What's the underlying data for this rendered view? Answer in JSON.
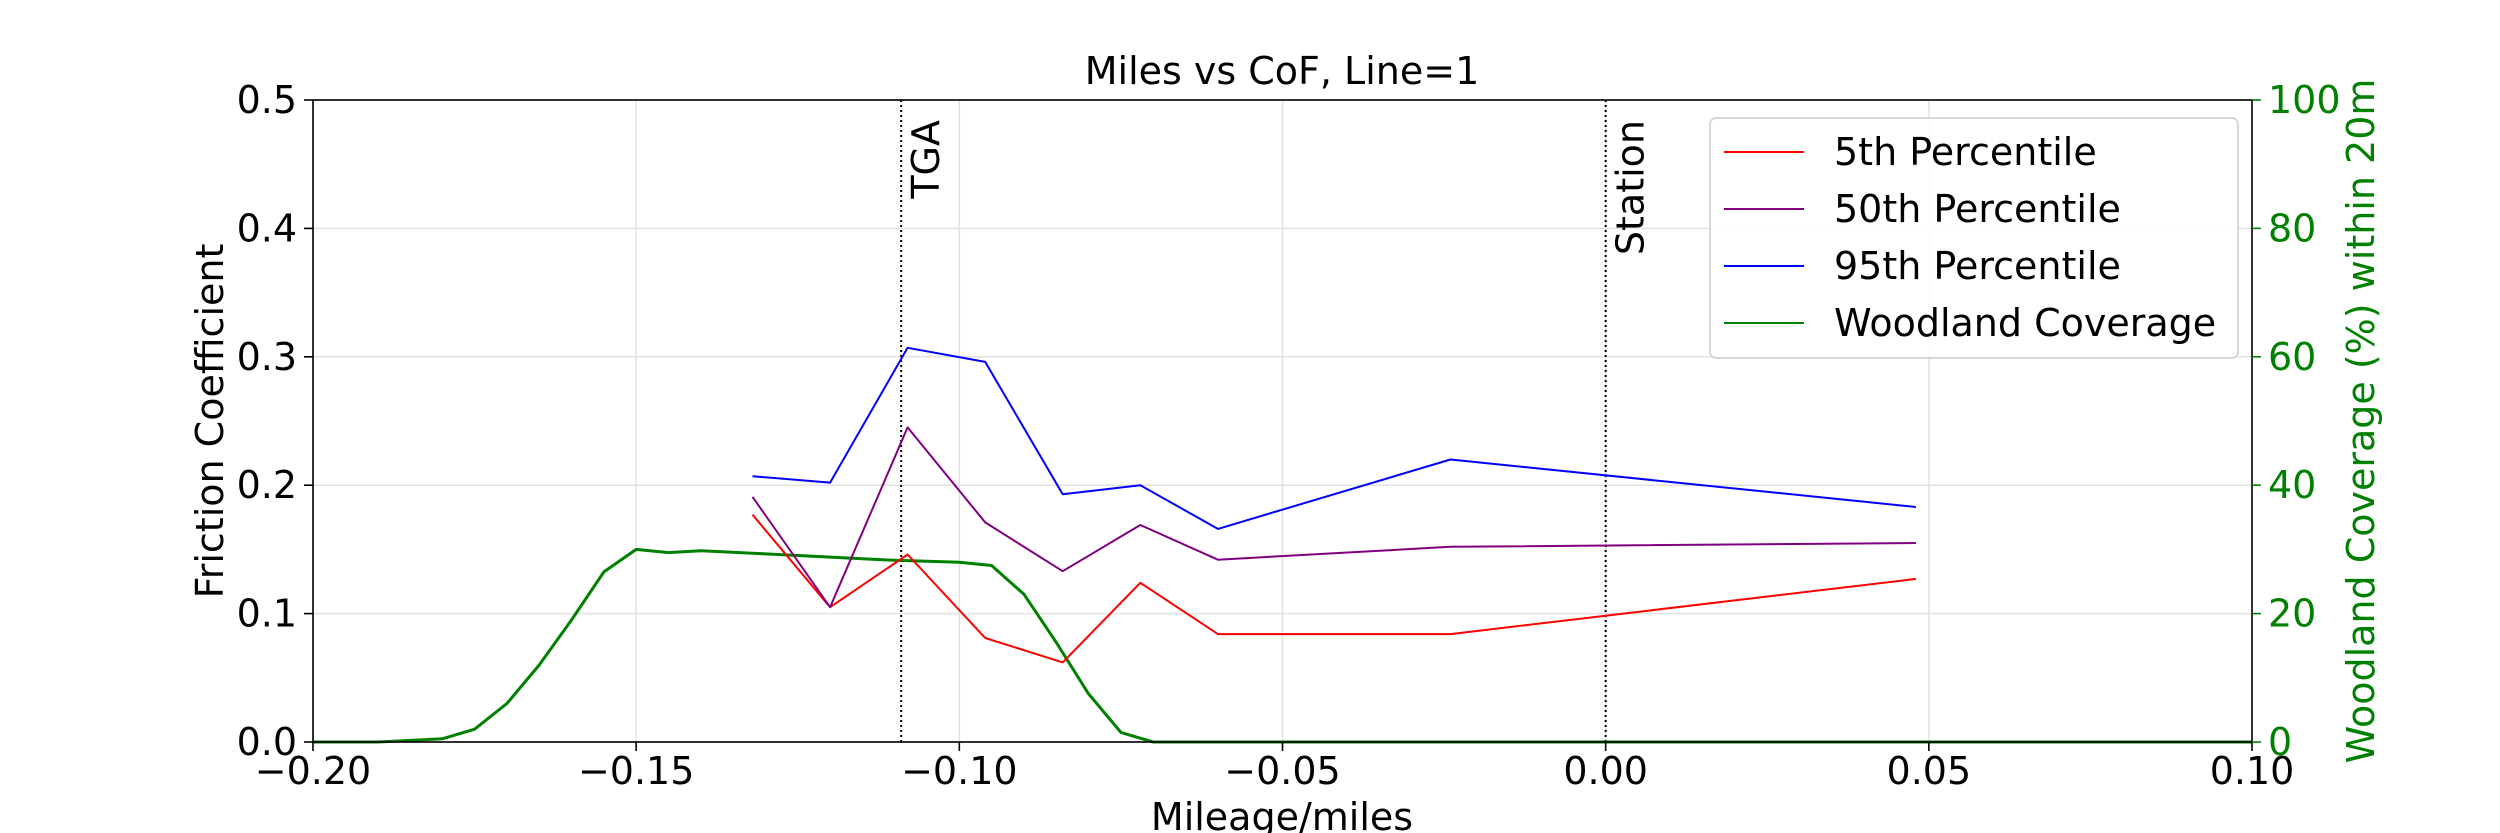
{
  "chart_data": {
    "type": "line",
    "title": "Miles vs CoF, Line=1",
    "xlabel": "Mileage/miles",
    "ylabel": "Friction Coefficient",
    "y2label": "Woodland Coverage (%) within 20m",
    "xlim": [
      -0.2,
      0.1
    ],
    "ylim": [
      0,
      0.5
    ],
    "y2lim": [
      0,
      100
    ],
    "xticks": [
      -0.2,
      -0.15,
      -0.1,
      -0.05,
      0.0,
      0.05,
      0.1
    ],
    "xtick_labels": [
      "−0.20",
      "−0.15",
      "−0.10",
      "−0.05",
      "0.00",
      "0.05",
      "0.10"
    ],
    "yticks": [
      0,
      0.1,
      0.2,
      0.3,
      0.4,
      0.5
    ],
    "ytick_labels": [
      "0.0",
      "0.1",
      "0.2",
      "0.3",
      "0.4",
      "0.5"
    ],
    "y2ticks": [
      0,
      20,
      40,
      60,
      80,
      100
    ],
    "y2tick_labels": [
      "0",
      "20",
      "40",
      "60",
      "80",
      "100"
    ],
    "grid": true,
    "legend_position": "top-right",
    "series": [
      {
        "name": "5th Percentile",
        "color": "#ff0000",
        "axis": "left",
        "x": [
          -0.132,
          -0.12,
          -0.108,
          -0.096,
          -0.084,
          -0.072,
          -0.06,
          -0.024,
          0.048
        ],
        "y": [
          0.177,
          0.105,
          0.146,
          0.081,
          0.062,
          0.124,
          0.084,
          0.084,
          0.127
        ]
      },
      {
        "name": "50th Percentile",
        "color": "#800080",
        "axis": "left",
        "x": [
          -0.132,
          -0.12,
          -0.108,
          -0.096,
          -0.084,
          -0.072,
          -0.06,
          -0.024,
          0.048
        ],
        "y": [
          0.191,
          0.105,
          0.245,
          0.171,
          0.133,
          0.169,
          0.142,
          0.152,
          0.155
        ]
      },
      {
        "name": "95th Percentile",
        "color": "#0000ff",
        "axis": "left",
        "x": [
          -0.132,
          -0.12,
          -0.108,
          -0.096,
          -0.084,
          -0.072,
          -0.06,
          -0.024,
          0.048
        ],
        "y": [
          0.207,
          0.202,
          0.307,
          0.296,
          0.193,
          0.2,
          0.166,
          0.22,
          0.183
        ]
      },
      {
        "name": "Woodland Coverage",
        "color": "#008000",
        "axis": "right",
        "x": [
          -0.2,
          -0.19,
          -0.18,
          -0.175,
          -0.17,
          -0.165,
          -0.16,
          -0.155,
          -0.15,
          -0.145,
          -0.14,
          -0.13,
          -0.12,
          -0.11,
          -0.1,
          -0.095,
          -0.09,
          -0.085,
          -0.08,
          -0.075,
          -0.07,
          -0.06,
          0.0,
          0.05,
          0.1
        ],
        "y": [
          0,
          0,
          0.5,
          2,
          6,
          12,
          19,
          26.5,
          30,
          29.5,
          29.8,
          29.3,
          28.8,
          28.3,
          28.0,
          27.5,
          23,
          15.5,
          7.5,
          1.5,
          0,
          0,
          0,
          0,
          0
        ]
      }
    ],
    "vlines": [
      {
        "x": -0.109,
        "label": "TGA"
      },
      {
        "x": 0.0,
        "label": "Station"
      }
    ]
  }
}
